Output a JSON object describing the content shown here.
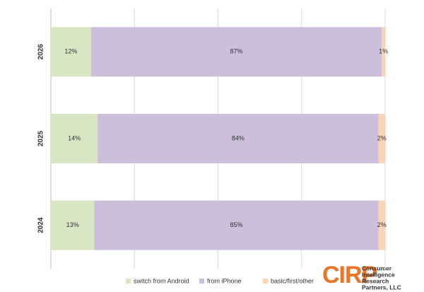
{
  "chart_data": {
    "type": "stacked-barh",
    "categories": [
      "2026",
      "2025",
      "2024"
    ],
    "series": [
      {
        "name": "switch from Android",
        "color": "#d9e6c4",
        "values": [
          12,
          14,
          13
        ],
        "value_labels": [
          "12%",
          "14%",
          "13%"
        ]
      },
      {
        "name": "from iPhone",
        "color": "#cbbfdc",
        "values": [
          87,
          84,
          85
        ],
        "value_labels": [
          "87%",
          "84%",
          "85%"
        ]
      },
      {
        "name": "basic/first/other",
        "color": "#f8d5b8",
        "values": [
          1,
          2,
          2
        ],
        "value_labels": [
          "1%",
          "2%",
          "2%"
        ]
      }
    ],
    "xlim": [
      0,
      100
    ],
    "xticks": [
      0,
      25,
      50,
      75,
      100
    ],
    "grid": true,
    "legend": "bottom"
  },
  "logo": {
    "mark": "CIRP",
    "lines": [
      "Consumer",
      "Intelligence",
      "Research",
      "Partners, LLC"
    ]
  }
}
